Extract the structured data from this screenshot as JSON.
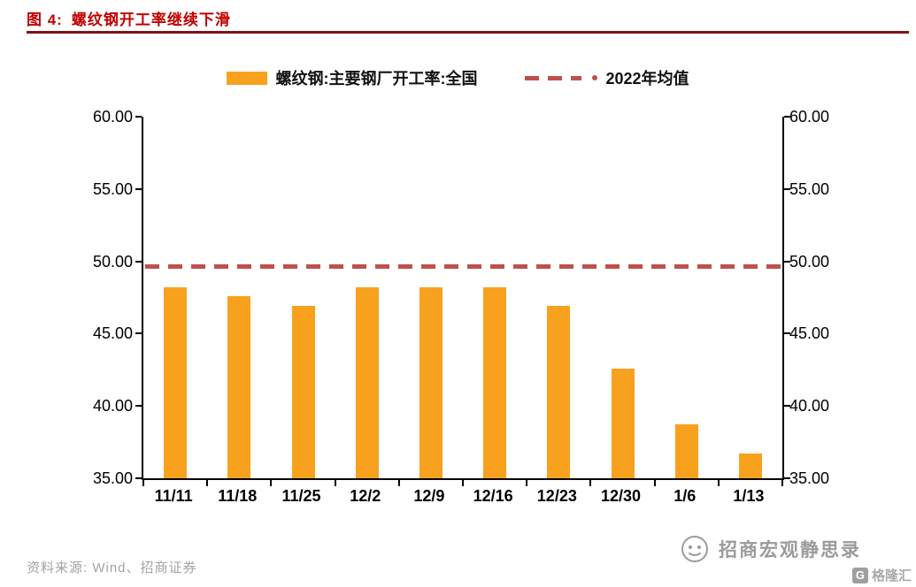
{
  "header": {
    "prefix": "图 4:",
    "title": "螺纹钢开工率继续下滑",
    "accent_color": "#c00000",
    "rule_color": "#7e1416"
  },
  "legend": {
    "bar_label": "螺纹钢:主要钢厂开工率:全国",
    "line_label": "2022年均值"
  },
  "chart_data": {
    "type": "bar",
    "title": "螺纹钢开工率继续下滑",
    "categories": [
      "11/11",
      "11/18",
      "11/25",
      "12/2",
      "12/9",
      "12/16",
      "12/23",
      "12/30",
      "1/6",
      "1/13"
    ],
    "series": [
      {
        "name": "螺纹钢:主要钢厂开工率:全国",
        "values": [
          48.2,
          47.6,
          46.9,
          48.2,
          48.2,
          48.2,
          46.9,
          42.6,
          38.7,
          36.7
        ]
      }
    ],
    "mean_line": {
      "name": "2022年均值",
      "value": 49.6
    },
    "ylim": [
      35,
      60
    ],
    "ytick_labels": [
      "60.00",
      "55.00",
      "50.00",
      "45.00",
      "40.00",
      "35.00"
    ],
    "xlabel": "",
    "ylabel": "",
    "grid": false,
    "legend_position": "top",
    "bar_color": "#f8a11e",
    "mean_color": "#c0504d"
  },
  "footer": {
    "source": "资料来源: Wind、招商证券",
    "watermark": "招商宏观静思录",
    "logo_text": "格隆汇",
    "logo_letter": "G"
  }
}
